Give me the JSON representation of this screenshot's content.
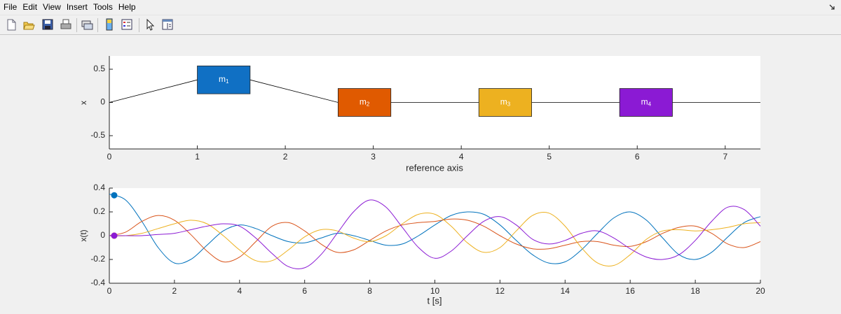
{
  "menu": [
    "File",
    "Edit",
    "View",
    "Insert",
    "Tools",
    "Help"
  ],
  "chart_data": [
    {
      "type": "line",
      "ylabel": "x",
      "xlabel": "reference axis",
      "x": [
        0,
        1,
        1.6,
        2.6,
        3.2,
        4.2,
        4.8,
        5.8,
        6.4,
        7.4
      ],
      "values": [
        0,
        0.34,
        0.34,
        0,
        0,
        0,
        0,
        0,
        0,
        0
      ],
      "color": "#000000",
      "xlim": [
        0,
        7.4
      ],
      "ylim": [
        -0.7,
        0.7
      ],
      "xticks": [
        0,
        1,
        2,
        3,
        4,
        5,
        6,
        7
      ],
      "yticks": [
        -0.5,
        0,
        0.5
      ],
      "masses": [
        {
          "label": "m",
          "subscript": "1",
          "x": 1.0,
          "width": 0.6,
          "y": 0.34,
          "height": 0.42,
          "color": "#1070c4"
        },
        {
          "label": "m",
          "subscript": "2",
          "x": 2.6,
          "width": 0.6,
          "y": 0,
          "height": 0.42,
          "color": "#e05a00"
        },
        {
          "label": "m",
          "subscript": "3",
          "x": 4.2,
          "width": 0.6,
          "y": 0,
          "height": 0.42,
          "color": "#edb120"
        },
        {
          "label": "m",
          "subscript": "4",
          "x": 5.8,
          "width": 0.6,
          "y": 0,
          "height": 0.42,
          "color": "#8b1ad4"
        }
      ]
    },
    {
      "type": "line",
      "ylabel": "x(t)",
      "xlabel": "t [s]",
      "x": [
        0,
        0.5,
        1,
        1.5,
        2,
        2.5,
        3,
        3.5,
        4,
        4.5,
        5,
        5.5,
        6,
        6.5,
        7,
        7.5,
        8,
        8.5,
        9,
        9.5,
        10,
        10.5,
        11,
        11.5,
        12,
        12.5,
        13,
        13.5,
        14,
        14.5,
        15,
        15.5,
        16,
        16.5,
        17,
        17.5,
        18,
        18.5,
        19,
        19.5,
        20
      ],
      "marker_x": 0.15,
      "series": [
        {
          "color": "#0072bd",
          "marker": 0.34,
          "values": [
            0.35,
            0.3,
            0.12,
            -0.1,
            -0.23,
            -0.2,
            -0.08,
            0.04,
            0.09,
            0.06,
            0.0,
            -0.05,
            -0.06,
            -0.02,
            0.02,
            0.0,
            -0.04,
            -0.08,
            -0.07,
            0.0,
            0.09,
            0.17,
            0.2,
            0.18,
            0.09,
            -0.04,
            -0.16,
            -0.23,
            -0.22,
            -0.12,
            0.02,
            0.15,
            0.2,
            0.13,
            -0.02,
            -0.16,
            -0.2,
            -0.14,
            -0.01,
            0.11,
            0.16
          ]
        },
        {
          "color": "#d95319",
          "marker": 0,
          "values": [
            0,
            0.03,
            0.12,
            0.17,
            0.13,
            0.01,
            -0.13,
            -0.22,
            -0.18,
            -0.05,
            0.08,
            0.11,
            0.04,
            -0.07,
            -0.14,
            -0.12,
            -0.04,
            0.04,
            0.09,
            0.11,
            0.12,
            0.14,
            0.13,
            0.08,
            0.0,
            -0.07,
            -0.11,
            -0.11,
            -0.08,
            -0.05,
            -0.05,
            -0.08,
            -0.09,
            -0.05,
            0.02,
            0.07,
            0.08,
            0.02,
            -0.07,
            -0.1,
            -0.05
          ]
        },
        {
          "color": "#edb120",
          "marker": 0,
          "values": [
            0,
            0.0,
            0.02,
            0.06,
            0.1,
            0.13,
            0.1,
            0.0,
            -0.12,
            -0.21,
            -0.21,
            -0.12,
            -0.01,
            0.05,
            0.04,
            -0.02,
            -0.05,
            0.0,
            0.1,
            0.18,
            0.18,
            0.08,
            -0.06,
            -0.14,
            -0.1,
            0.04,
            0.17,
            0.19,
            0.08,
            -0.1,
            -0.23,
            -0.25,
            -0.16,
            -0.03,
            0.04,
            0.05,
            0.04,
            0.05,
            0.07,
            0.1,
            0.11
          ]
        },
        {
          "color": "#8b1ad4",
          "marker": 0,
          "values": [
            0,
            0.0,
            0.0,
            0.01,
            0.02,
            0.05,
            0.08,
            0.1,
            0.08,
            -0.02,
            -0.15,
            -0.26,
            -0.27,
            -0.16,
            0.02,
            0.2,
            0.3,
            0.24,
            0.07,
            -0.1,
            -0.19,
            -0.13,
            0.0,
            0.12,
            0.16,
            0.09,
            -0.03,
            -0.07,
            -0.04,
            0.02,
            0.04,
            -0.02,
            -0.11,
            -0.18,
            -0.2,
            -0.16,
            -0.04,
            0.12,
            0.24,
            0.22,
            0.08
          ]
        }
      ],
      "xlim": [
        0,
        20
      ],
      "ylim": [
        -0.4,
        0.4
      ],
      "xticks": [
        0,
        2,
        4,
        6,
        8,
        10,
        12,
        14,
        16,
        18,
        20
      ],
      "yticks": [
        -0.4,
        -0.2,
        0,
        0.2,
        0.4
      ]
    }
  ]
}
